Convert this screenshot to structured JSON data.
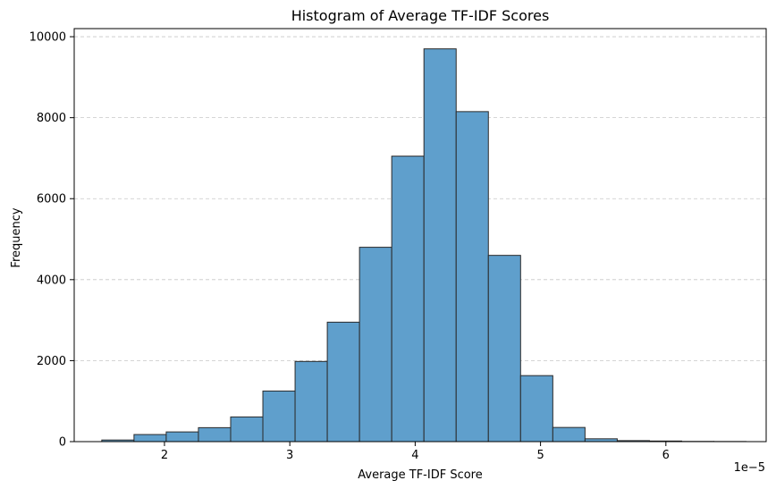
{
  "chart_data": {
    "type": "bar",
    "title": "Histogram of Average TF-IDF Scores",
    "xlabel": "Average TF-IDF Score",
    "ylabel": "Frequency",
    "x_offset_label": "1e−5",
    "xlim": [
      1.28,
      6.8
    ],
    "ylim": [
      0,
      10200
    ],
    "x_ticks": [
      2,
      3,
      4,
      5,
      6
    ],
    "x_tick_labels": [
      "2",
      "3",
      "4",
      "5",
      "6"
    ],
    "y_ticks": [
      0,
      2000,
      4000,
      6000,
      8000,
      10000
    ],
    "y_tick_labels": [
      "0",
      "2000",
      "4000",
      "6000",
      "8000",
      "10000"
    ],
    "grid": "y-dashed",
    "bar_color": "#5f9fcc",
    "edge_color": "#2b2b2b",
    "bin_edges": [
      1.5,
      1.757,
      2.014,
      2.271,
      2.528,
      2.785,
      3.042,
      3.299,
      3.556,
      3.813,
      4.07,
      4.327,
      4.584,
      4.841,
      5.098,
      5.355,
      5.612,
      5.869,
      6.126,
      6.383,
      6.64
    ],
    "values": [
      40,
      175,
      240,
      345,
      610,
      1250,
      1980,
      2950,
      4800,
      7050,
      9700,
      8150,
      4600,
      1630,
      350,
      70,
      25,
      15,
      5,
      3
    ]
  }
}
